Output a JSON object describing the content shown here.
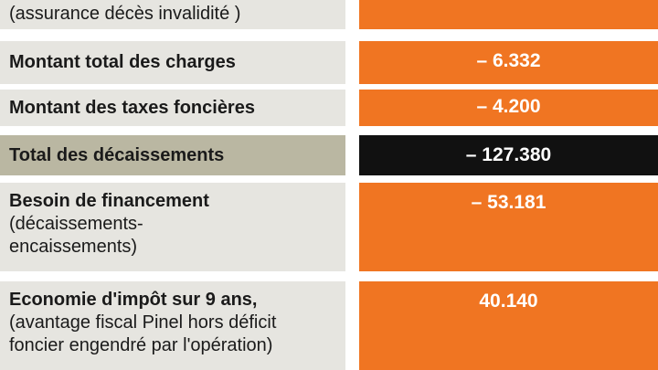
{
  "rows": [
    {
      "note": [
        "(assurance décès invalidité )"
      ]
    },
    {
      "label": "Montant total des charges",
      "value": "– 6.332"
    },
    {
      "label": "Montant des taxes foncières",
      "value": "– 4.200"
    },
    {
      "label": "Total des décaissements",
      "value": "– 127.380"
    },
    {
      "label": "Besoin de financement",
      "note": [
        "(décaissements-",
        "encaissements)"
      ],
      "value": "– 53.181"
    },
    {
      "label": "Economie d'impôt sur 9 ans,",
      "note": [
        "(avantage fiscal Pinel hors déficit",
        "foncier engendré par l'opération)"
      ],
      "value": "40.140"
    }
  ]
}
